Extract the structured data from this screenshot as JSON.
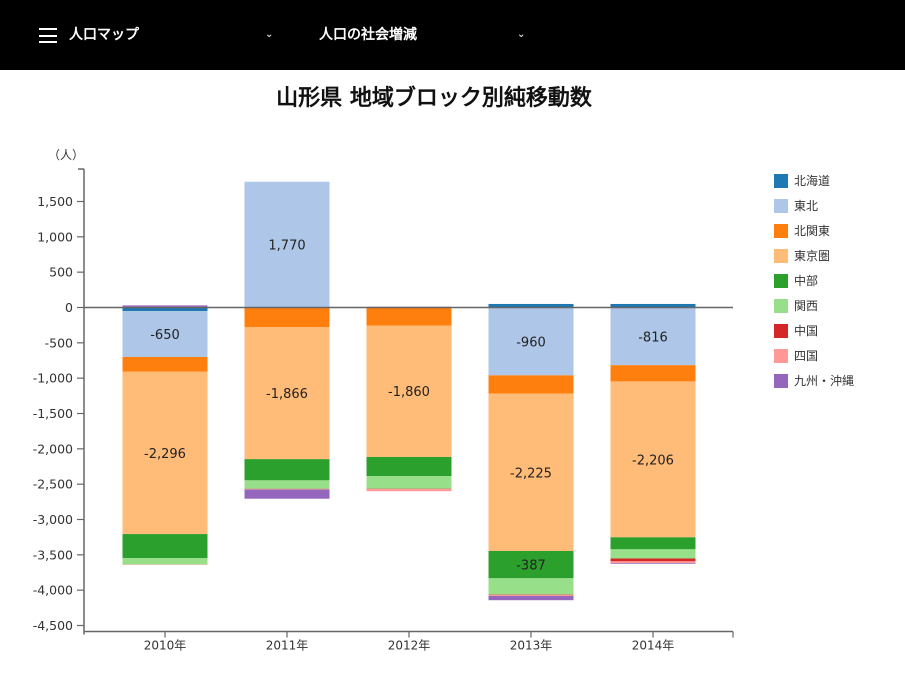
{
  "header": {
    "menu_icon": "hamburger-menu-icon",
    "select1": {
      "value": "人口マップ",
      "icon": "chevron-down-icon"
    },
    "select2": {
      "value": "人口の社会増減",
      "icon": "chevron-down-icon"
    },
    "chevron": "⌄"
  },
  "chart_data": {
    "type": "bar",
    "stacked": true,
    "title": "山形県 地域ブロック別純移動数",
    "ylabel": "（人）",
    "xlabel": "",
    "ylim": [
      -4500,
      1800
    ],
    "yticks": [
      1500,
      1000,
      500,
      0,
      -500,
      -1000,
      -1500,
      -2000,
      -2500,
      -3000,
      -3500,
      -4000,
      -4500
    ],
    "ytick_labels": [
      "1,500",
      "1,000",
      "500",
      "0",
      "-500",
      "-1,000",
      "-1,500",
      "-2,000",
      "-2,500",
      "-3,000",
      "-3,500",
      "-4,000",
      "-4,500"
    ],
    "categories": [
      "2010年",
      "2011年",
      "2012年",
      "2013年",
      "2014年"
    ],
    "legend_position": "right",
    "series": [
      {
        "name": "北海道",
        "color": "#1f77b4",
        "values": [
          -50,
          10,
          -5,
          50,
          50
        ]
      },
      {
        "name": "東北",
        "color": "#aec7e8",
        "values": [
          -650,
          1770,
          0,
          -960,
          -816
        ]
      },
      {
        "name": "北関東",
        "color": "#ff7f0e",
        "values": [
          -210,
          -280,
          -250,
          -260,
          -230
        ]
      },
      {
        "name": "東京圏",
        "color": "#ffbb78",
        "values": [
          -2296,
          -1866,
          -1860,
          -2225,
          -2206
        ]
      },
      {
        "name": "中部",
        "color": "#2ca02c",
        "values": [
          -340,
          -300,
          -270,
          -387,
          -170
        ]
      },
      {
        "name": "関西",
        "color": "#98df8a",
        "values": [
          -90,
          -120,
          -180,
          -230,
          -130
        ]
      },
      {
        "name": "中国",
        "color": "#d62728",
        "values": [
          10,
          -5,
          -5,
          -5,
          -40
        ]
      },
      {
        "name": "四国",
        "color": "#ff9896",
        "values": [
          -5,
          -5,
          -30,
          -15,
          -25
        ]
      },
      {
        "name": "九州・沖縄",
        "color": "#9467bd",
        "values": [
          20,
          -130,
          10,
          -60,
          -10
        ]
      }
    ],
    "data_labels": [
      {
        "series": "東北",
        "category": "2010年",
        "text": "-650"
      },
      {
        "series": "東京圏",
        "category": "2010年",
        "text": "-2,296"
      },
      {
        "series": "東北",
        "category": "2011年",
        "text": "1,770"
      },
      {
        "series": "東京圏",
        "category": "2011年",
        "text": "-1,866"
      },
      {
        "series": "東京圏",
        "category": "2012年",
        "text": "-1,860"
      },
      {
        "series": "東北",
        "category": "2013年",
        "text": "-960"
      },
      {
        "series": "東京圏",
        "category": "2013年",
        "text": "-2,225"
      },
      {
        "series": "中部",
        "category": "2013年",
        "text": "-387"
      },
      {
        "series": "東北",
        "category": "2014年",
        "text": "-816"
      },
      {
        "series": "東京圏",
        "category": "2014年",
        "text": "-2,206"
      }
    ]
  }
}
